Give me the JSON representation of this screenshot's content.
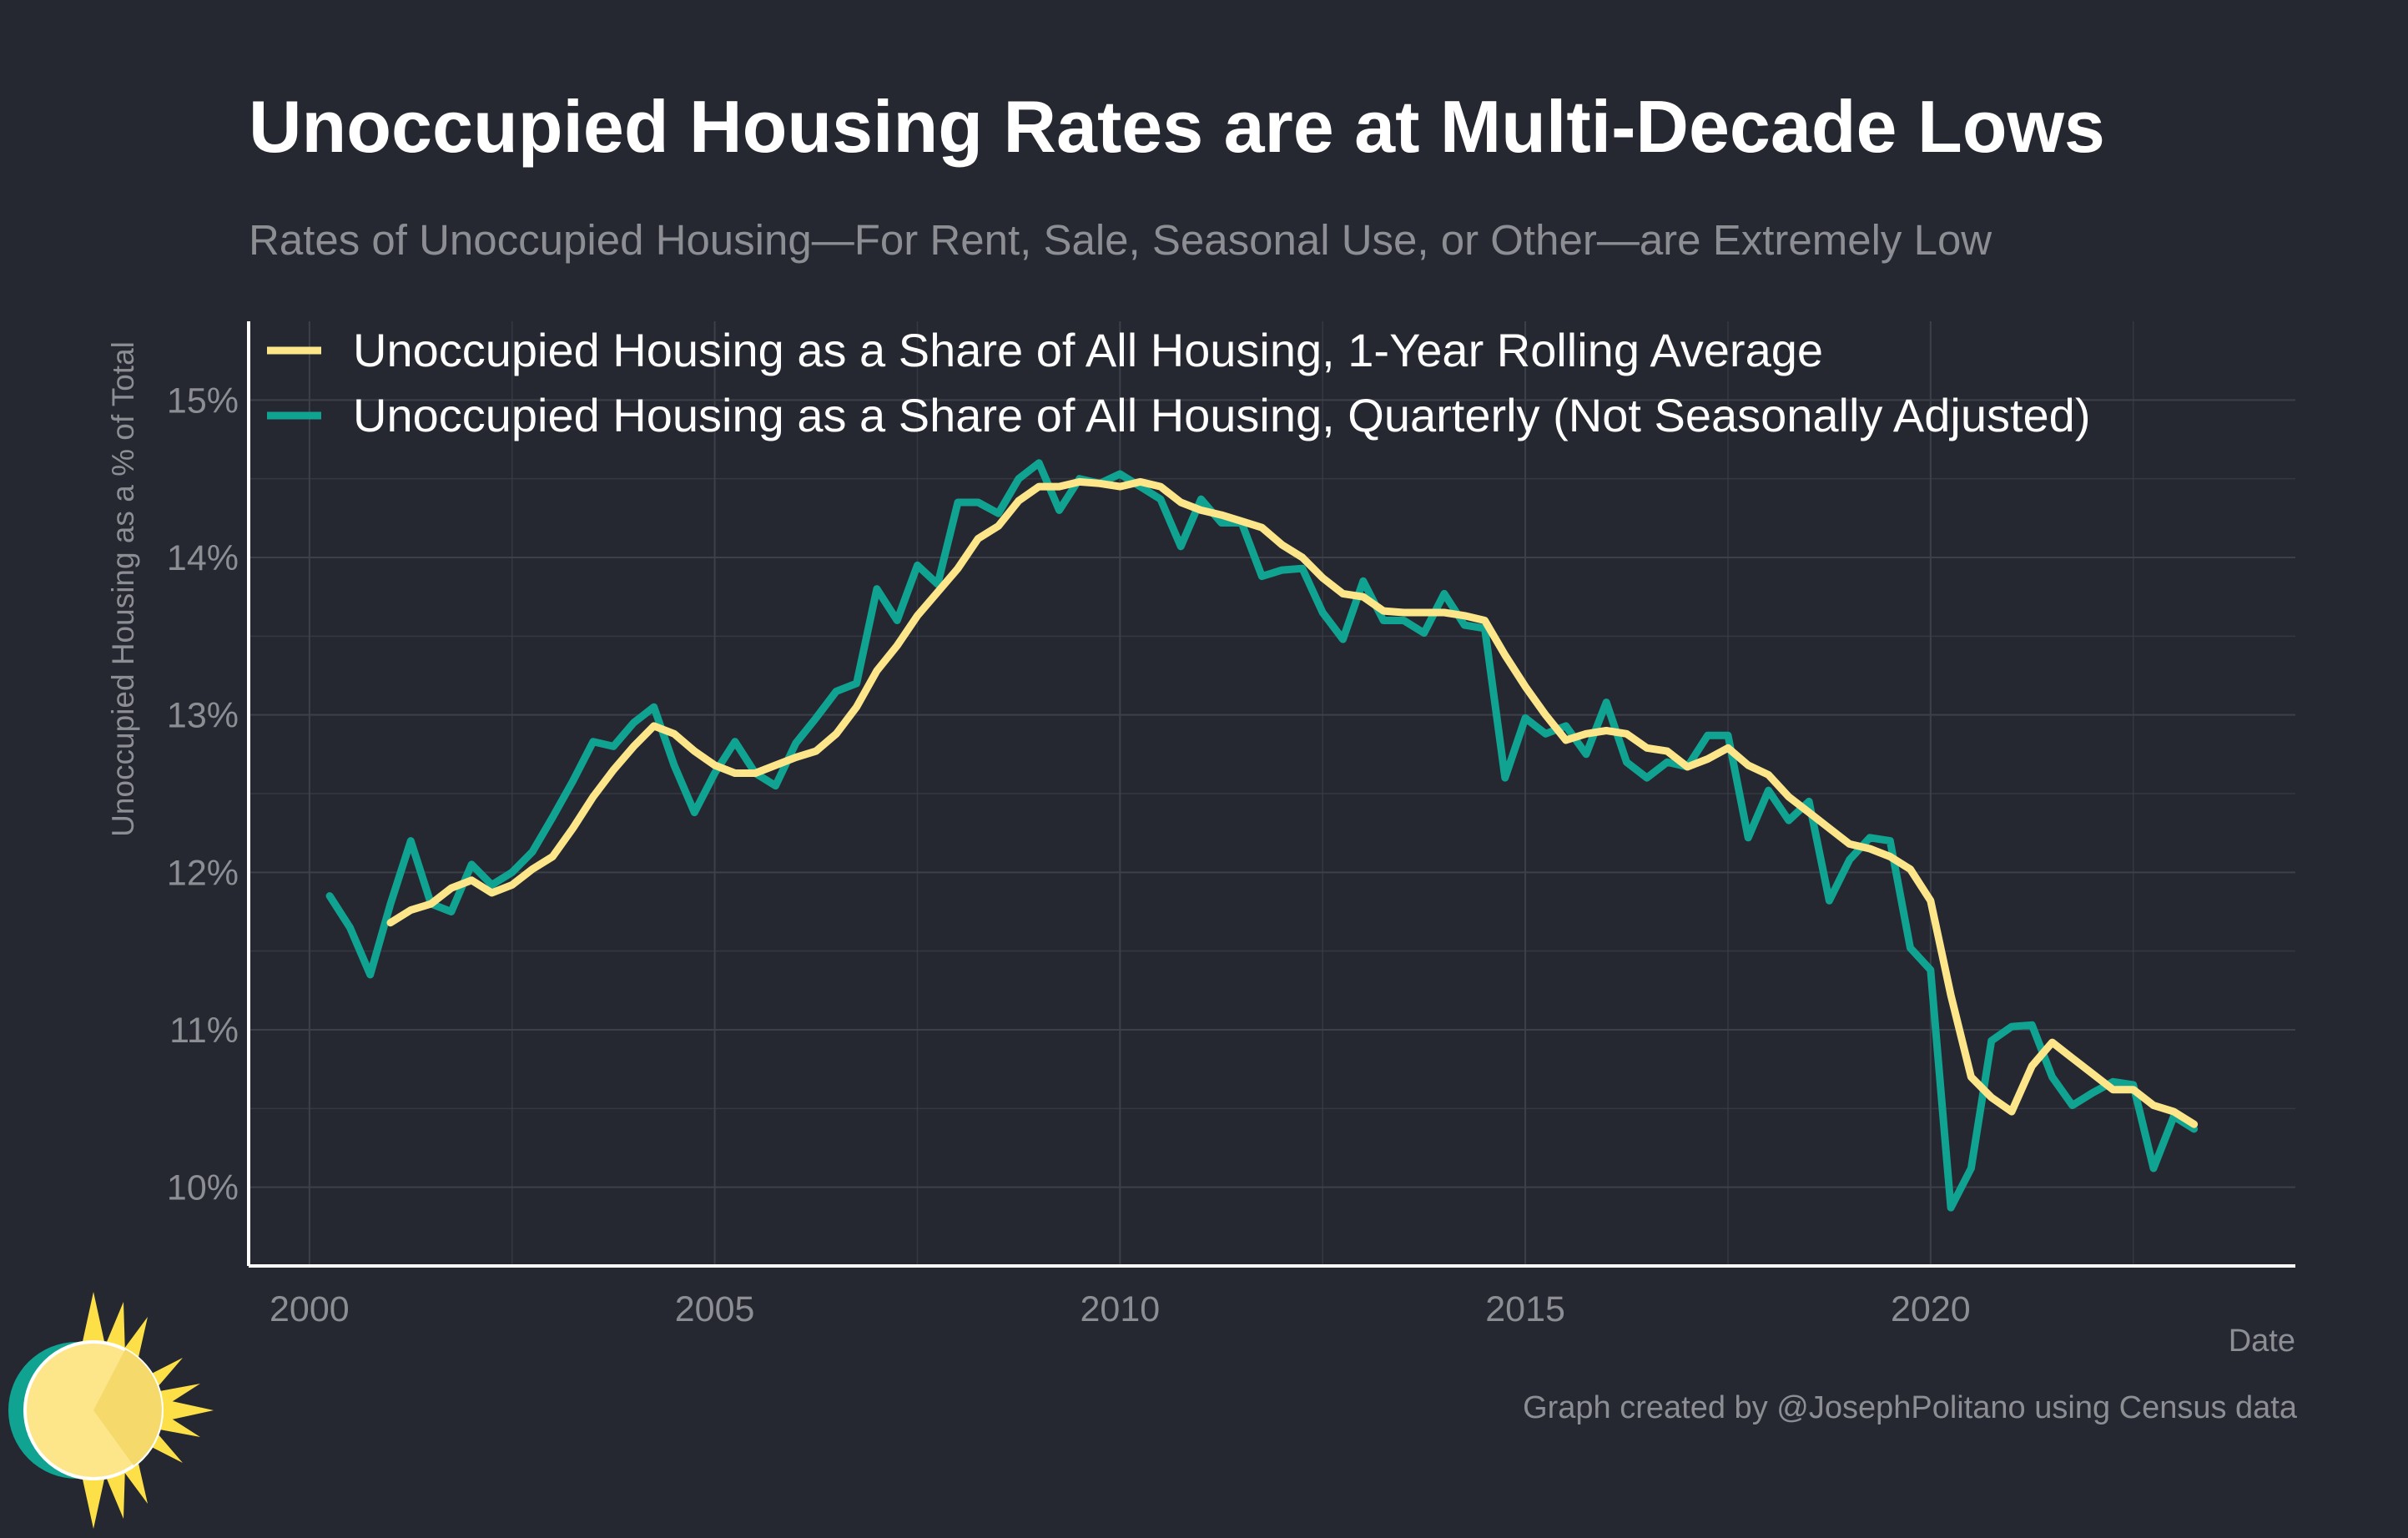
{
  "title": "Unoccupied Housing Rates are at Multi-Decade Lows",
  "subtitle": "Rates of Unoccupied Housing—For Rent, Sale, Seasonal Use, or Other—are Extremely Low",
  "caption": "Graph created by @JosephPolitano using Census data",
  "colors": {
    "background": "#252830",
    "grid": "#3d4048",
    "axis": "#ffffff",
    "tick_text": "#8c8e94",
    "rolling": "#fde68a",
    "quarterly": "#10a392"
  },
  "chart_data": {
    "type": "line",
    "xlabel": "Date",
    "ylabel": "Unoccupied Housing as a % of Total",
    "xlim": [
      1999.25,
      2024.5
    ],
    "ylim": [
      9.5,
      15.5
    ],
    "x_ticks": [
      2000,
      2005,
      2010,
      2015,
      2020
    ],
    "x_tick_labels": [
      "2000",
      "2005",
      "2010",
      "2015",
      "2020"
    ],
    "y_ticks": [
      10,
      11,
      12,
      13,
      14,
      15
    ],
    "y_tick_labels": [
      "10%",
      "11%",
      "12%",
      "13%",
      "14%",
      "15%"
    ],
    "legend_position": "top-left",
    "grid": true,
    "series": [
      {
        "name": "Unoccupied Housing as a Share of All Housing, 1-Year Rolling Average",
        "color": "#fde68a",
        "points": [
          [
            2001.0,
            11.68
          ],
          [
            2001.25,
            11.76
          ],
          [
            2001.5,
            11.8
          ],
          [
            2001.75,
            11.9
          ],
          [
            2002.0,
            11.95
          ],
          [
            2002.25,
            11.87
          ],
          [
            2002.5,
            11.92
          ],
          [
            2002.75,
            12.02
          ],
          [
            2003.0,
            12.1
          ],
          [
            2003.25,
            12.28
          ],
          [
            2003.5,
            12.48
          ],
          [
            2003.75,
            12.65
          ],
          [
            2004.0,
            12.8
          ],
          [
            2004.25,
            12.93
          ],
          [
            2004.5,
            12.88
          ],
          [
            2004.75,
            12.77
          ],
          [
            2005.0,
            12.68
          ],
          [
            2005.25,
            12.63
          ],
          [
            2005.5,
            12.63
          ],
          [
            2005.75,
            12.68
          ],
          [
            2006.0,
            12.73
          ],
          [
            2006.25,
            12.77
          ],
          [
            2006.5,
            12.88
          ],
          [
            2006.75,
            13.05
          ],
          [
            2007.0,
            13.28
          ],
          [
            2007.25,
            13.44
          ],
          [
            2007.5,
            13.63
          ],
          [
            2007.75,
            13.78
          ],
          [
            2008.0,
            13.93
          ],
          [
            2008.25,
            14.12
          ],
          [
            2008.5,
            14.2
          ],
          [
            2008.75,
            14.36
          ],
          [
            2009.0,
            14.45
          ],
          [
            2009.25,
            14.45
          ],
          [
            2009.5,
            14.48
          ],
          [
            2009.75,
            14.47
          ],
          [
            2010.0,
            14.45
          ],
          [
            2010.25,
            14.48
          ],
          [
            2010.5,
            14.45
          ],
          [
            2010.75,
            14.35
          ],
          [
            2011.0,
            14.3
          ],
          [
            2011.25,
            14.27
          ],
          [
            2011.5,
            14.23
          ],
          [
            2011.75,
            14.19
          ],
          [
            2012.0,
            14.08
          ],
          [
            2012.25,
            14.0
          ],
          [
            2012.5,
            13.87
          ],
          [
            2012.75,
            13.77
          ],
          [
            2013.0,
            13.75
          ],
          [
            2013.25,
            13.66
          ],
          [
            2013.5,
            13.65
          ],
          [
            2013.75,
            13.65
          ],
          [
            2014.0,
            13.65
          ],
          [
            2014.25,
            13.63
          ],
          [
            2014.5,
            13.6
          ],
          [
            2014.75,
            13.38
          ],
          [
            2015.0,
            13.18
          ],
          [
            2015.25,
            13.0
          ],
          [
            2015.5,
            12.84
          ],
          [
            2015.75,
            12.88
          ],
          [
            2016.0,
            12.9
          ],
          [
            2016.25,
            12.88
          ],
          [
            2016.5,
            12.79
          ],
          [
            2016.75,
            12.77
          ],
          [
            2017.0,
            12.67
          ],
          [
            2017.25,
            12.72
          ],
          [
            2017.5,
            12.79
          ],
          [
            2017.75,
            12.68
          ],
          [
            2018.0,
            12.62
          ],
          [
            2018.25,
            12.48
          ],
          [
            2018.5,
            12.38
          ],
          [
            2018.75,
            12.28
          ],
          [
            2019.0,
            12.18
          ],
          [
            2019.25,
            12.15
          ],
          [
            2019.5,
            12.1
          ],
          [
            2019.75,
            12.02
          ],
          [
            2020.0,
            11.82
          ],
          [
            2020.25,
            11.22
          ],
          [
            2020.5,
            10.7
          ],
          [
            2020.75,
            10.57
          ],
          [
            2021.0,
            10.48
          ],
          [
            2021.25,
            10.77
          ],
          [
            2021.5,
            10.92
          ],
          [
            2021.75,
            10.82
          ],
          [
            2022.0,
            10.72
          ],
          [
            2022.25,
            10.62
          ],
          [
            2022.5,
            10.62
          ],
          [
            2022.75,
            10.52
          ],
          [
            2023.0,
            10.48
          ],
          [
            2023.25,
            10.4
          ]
        ]
      },
      {
        "name": "Unoccupied Housing as a Share of All Housing, Quarterly (Not Seasonally Adjusted)",
        "color": "#10a392",
        "points": [
          [
            2000.25,
            11.85
          ],
          [
            2000.5,
            11.65
          ],
          [
            2000.75,
            11.35
          ],
          [
            2001.0,
            11.8
          ],
          [
            2001.25,
            12.2
          ],
          [
            2001.5,
            11.8
          ],
          [
            2001.75,
            11.75
          ],
          [
            2002.0,
            12.05
          ],
          [
            2002.25,
            11.92
          ],
          [
            2002.5,
            12.0
          ],
          [
            2002.75,
            12.13
          ],
          [
            2003.0,
            12.35
          ],
          [
            2003.25,
            12.58
          ],
          [
            2003.5,
            12.83
          ],
          [
            2003.75,
            12.8
          ],
          [
            2004.0,
            12.95
          ],
          [
            2004.25,
            13.05
          ],
          [
            2004.5,
            12.68
          ],
          [
            2004.75,
            12.38
          ],
          [
            2005.0,
            12.63
          ],
          [
            2005.25,
            12.83
          ],
          [
            2005.5,
            12.63
          ],
          [
            2005.75,
            12.55
          ],
          [
            2006.0,
            12.82
          ],
          [
            2006.25,
            12.98
          ],
          [
            2006.5,
            13.15
          ],
          [
            2006.75,
            13.2
          ],
          [
            2007.0,
            13.8
          ],
          [
            2007.25,
            13.6
          ],
          [
            2007.5,
            13.95
          ],
          [
            2007.75,
            13.83
          ],
          [
            2008.0,
            14.35
          ],
          [
            2008.25,
            14.35
          ],
          [
            2008.5,
            14.28
          ],
          [
            2008.75,
            14.5
          ],
          [
            2009.0,
            14.6
          ],
          [
            2009.25,
            14.3
          ],
          [
            2009.5,
            14.5
          ],
          [
            2009.75,
            14.47
          ],
          [
            2010.0,
            14.53
          ],
          [
            2010.25,
            14.45
          ],
          [
            2010.5,
            14.37
          ],
          [
            2010.75,
            14.07
          ],
          [
            2011.0,
            14.37
          ],
          [
            2011.25,
            14.22
          ],
          [
            2011.5,
            14.22
          ],
          [
            2011.75,
            13.88
          ],
          [
            2012.0,
            13.92
          ],
          [
            2012.25,
            13.93
          ],
          [
            2012.5,
            13.65
          ],
          [
            2012.75,
            13.48
          ],
          [
            2013.0,
            13.85
          ],
          [
            2013.25,
            13.6
          ],
          [
            2013.5,
            13.6
          ],
          [
            2013.75,
            13.52
          ],
          [
            2014.0,
            13.77
          ],
          [
            2014.25,
            13.57
          ],
          [
            2014.5,
            13.55
          ],
          [
            2014.75,
            12.6
          ],
          [
            2015.0,
            12.98
          ],
          [
            2015.25,
            12.88
          ],
          [
            2015.5,
            12.93
          ],
          [
            2015.75,
            12.75
          ],
          [
            2016.0,
            13.08
          ],
          [
            2016.25,
            12.7
          ],
          [
            2016.5,
            12.6
          ],
          [
            2016.75,
            12.7
          ],
          [
            2017.0,
            12.67
          ],
          [
            2017.25,
            12.87
          ],
          [
            2017.5,
            12.87
          ],
          [
            2017.75,
            12.22
          ],
          [
            2018.0,
            12.52
          ],
          [
            2018.25,
            12.33
          ],
          [
            2018.5,
            12.45
          ],
          [
            2018.75,
            11.82
          ],
          [
            2019.0,
            12.08
          ],
          [
            2019.25,
            12.22
          ],
          [
            2019.5,
            12.2
          ],
          [
            2019.75,
            11.52
          ],
          [
            2020.0,
            11.38
          ],
          [
            2020.25,
            9.87
          ],
          [
            2020.5,
            10.12
          ],
          [
            2020.75,
            10.93
          ],
          [
            2021.0,
            11.02
          ],
          [
            2021.25,
            11.03
          ],
          [
            2021.5,
            10.7
          ],
          [
            2021.75,
            10.52
          ],
          [
            2022.0,
            10.6
          ],
          [
            2022.25,
            10.67
          ],
          [
            2022.5,
            10.65
          ],
          [
            2022.75,
            10.12
          ],
          [
            2023.0,
            10.45
          ],
          [
            2023.25,
            10.37
          ]
        ]
      }
    ]
  }
}
